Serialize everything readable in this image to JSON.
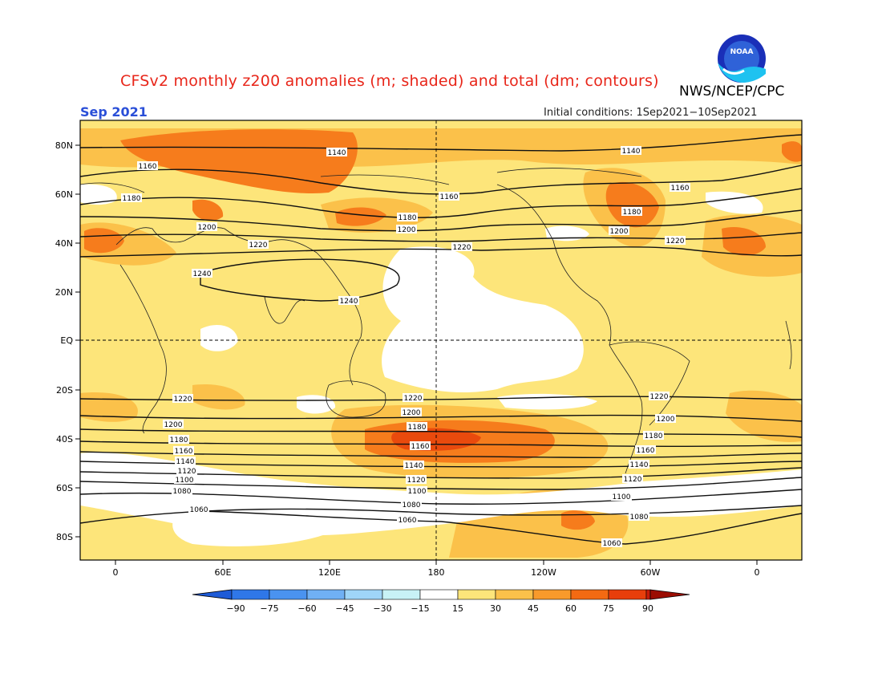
{
  "header": {
    "title": "CFSv2 monthly z200 anomalies (m; shaded) and total (dm; contours)",
    "credit": "NWS/NCEP/CPC",
    "month": "Sep 2021",
    "initial_conditions": "Initial conditions: 1Sep2021−10Sep2021",
    "logo_text": "NOAA"
  },
  "map": {
    "projection": "cylindrical equidistant, central meridian 180",
    "lon_labels": [
      "0",
      "60E",
      "120E",
      "180",
      "120W",
      "60W",
      "0"
    ],
    "lat_labels": [
      "80N",
      "60N",
      "40N",
      "20N",
      "EQ",
      "20S",
      "40S",
      "60S",
      "80S"
    ],
    "contour_labels": [
      "1140",
      "1160",
      "1180",
      "1200",
      "1220",
      "1240",
      "1120",
      "1100",
      "1080",
      "1060"
    ],
    "anomaly_regions": [
      {
        "region": "North Atlantic / Europe 40N",
        "level": 60
      },
      {
        "region": "Northern Eurasia 75N",
        "level": 60
      },
      {
        "region": "East Asia 45N",
        "level": 60
      },
      {
        "region": "Eastern North America 50N",
        "level": 60
      },
      {
        "region": "South Pacific 40S",
        "level": 60
      },
      {
        "region": "South Pacific 40S core",
        "level": 75
      },
      {
        "region": "Southeast Pacific 70S",
        "level": 60
      },
      {
        "region": "Tropical Pacific",
        "level": 0
      }
    ]
  },
  "colorbar": {
    "labels": [
      "−90",
      "−75",
      "−60",
      "−45",
      "−30",
      "−15",
      "15",
      "30",
      "45",
      "60",
      "75",
      "90"
    ],
    "colors": [
      "#1e5bd7",
      "#2f77e8",
      "#4a93f0",
      "#70b0f4",
      "#9fd5f8",
      "#c8f2f6",
      "#ffffff",
      "#fde57a",
      "#fbc14a",
      "#f99a2b",
      "#f36a12",
      "#e83e0b",
      "#c81a07",
      "#9b0d02"
    ]
  },
  "palette": {
    "title": "#e8261a",
    "month": "#2a4fd8",
    "background_anomaly": "#fde57a"
  }
}
